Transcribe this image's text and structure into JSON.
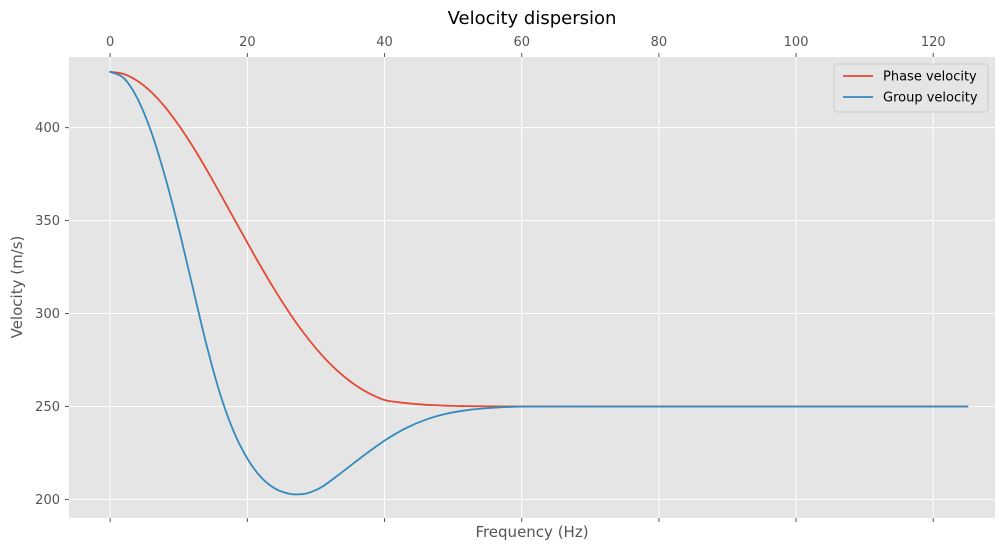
{
  "chart_data": {
    "type": "line",
    "title": "Velocity dispersion",
    "xlabel": "Frequency (Hz)",
    "ylabel": "Velocity (m/s)",
    "xlim": [
      -6,
      129
    ],
    "ylim": [
      190,
      438
    ],
    "x_ticks": [
      0,
      20,
      40,
      60,
      80,
      100,
      120
    ],
    "y_ticks": [
      200,
      250,
      300,
      350,
      400
    ],
    "x_tick_position": "top",
    "grid": true,
    "legend_position": "top-right",
    "background": "#e5e5e5",
    "series": [
      {
        "name": "Phase velocity",
        "color": "#e24a33",
        "x": [
          0,
          2,
          4,
          6,
          8,
          10,
          12,
          14,
          16,
          18,
          20,
          22,
          24,
          26,
          28,
          30,
          32,
          34,
          36,
          38,
          40,
          42,
          44,
          46,
          48,
          50,
          52,
          54,
          56,
          58,
          60,
          65,
          70,
          80,
          90,
          100,
          110,
          125
        ],
        "y": [
          430,
          428.8,
          425.1,
          419.1,
          411.1,
          401.3,
          390.1,
          377.8,
          364.8,
          351.4,
          338.1,
          325.1,
          312.7,
          301.1,
          290.6,
          281.3,
          273.2,
          266.4,
          260.9,
          256.6,
          253.5,
          252.3,
          251.5,
          250.9,
          250.6,
          250.3,
          250.2,
          250.1,
          250.05,
          250.02,
          250,
          250,
          250,
          250,
          250,
          250,
          250,
          250
        ]
      },
      {
        "name": "Group velocity",
        "color": "#348abd",
        "x": [
          0,
          2,
          4,
          6,
          8,
          10,
          12,
          14,
          16,
          18,
          20,
          22,
          24,
          26,
          27.5,
          29,
          31,
          34,
          37,
          40,
          43,
          46,
          49,
          52,
          55,
          58,
          60,
          65,
          70,
          80,
          90,
          100,
          110,
          125
        ],
        "y": [
          430,
          426.6,
          415.5,
          397.6,
          373.7,
          345.6,
          314.7,
          283.8,
          257.1,
          236.6,
          222,
          211.9,
          205.9,
          203.1,
          202.7,
          203.6,
          207,
          215.2,
          223.7,
          231.6,
          238.1,
          242.9,
          246.1,
          248,
          249.1,
          249.7,
          249.9,
          250,
          250,
          250,
          250,
          250,
          250,
          250
        ]
      }
    ]
  }
}
